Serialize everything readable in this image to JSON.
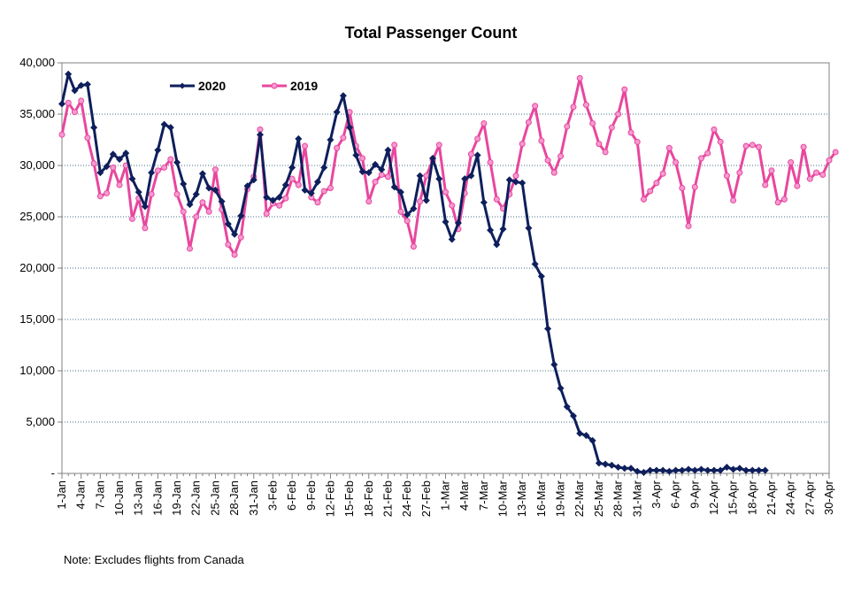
{
  "chart_data": {
    "type": "line",
    "title": "Total Passenger Count",
    "xlabel": "",
    "ylabel": "",
    "ylim": [
      0,
      40000
    ],
    "ytick_labels": [
      "-",
      "5,000",
      "10,000",
      "15,000",
      "20,000",
      "25,000",
      "30,000",
      "35,000",
      "40,000"
    ],
    "ytick_values": [
      0,
      5000,
      10000,
      15000,
      20000,
      25000,
      30000,
      35000,
      40000
    ],
    "grid": true,
    "legend_position": "top-left",
    "x_labels": [
      "1-Jan",
      "4-Jan",
      "7-Jan",
      "10-Jan",
      "13-Jan",
      "16-Jan",
      "19-Jan",
      "22-Jan",
      "25-Jan",
      "28-Jan",
      "31-Jan",
      "3-Feb",
      "6-Feb",
      "9-Feb",
      "12-Feb",
      "15-Feb",
      "18-Feb",
      "21-Feb",
      "24-Feb",
      "27-Feb",
      "1-Mar",
      "4-Mar",
      "7-Mar",
      "10-Mar",
      "13-Mar",
      "16-Mar",
      "19-Mar",
      "22-Mar",
      "25-Mar",
      "28-Mar",
      "31-Mar",
      "3-Apr",
      "6-Apr",
      "9-Apr",
      "12-Apr",
      "15-Apr",
      "18-Apr",
      "21-Apr",
      "24-Apr",
      "27-Apr",
      "30-Apr"
    ],
    "series": [
      {
        "name": "2020",
        "color": "#0f1f5c",
        "marker": "diamond",
        "values": [
          36000,
          38900,
          37300,
          37800,
          37900,
          33700,
          29300,
          29900,
          31100,
          30600,
          31200,
          28700,
          27400,
          26000,
          29300,
          31500,
          34000,
          33700,
          30300,
          28200,
          26200,
          27200,
          29200,
          27800,
          27600,
          26500,
          24300,
          23300,
          25100,
          28000,
          28600,
          33000,
          26900,
          26600,
          26900,
          28100,
          29800,
          32600,
          27600,
          27300,
          28400,
          29800,
          32500,
          35200,
          36800,
          33700,
          31000,
          29400,
          29300,
          30100,
          29600,
          31500,
          27900,
          27400,
          25200,
          25800,
          29000,
          26600,
          30700,
          28700,
          24500,
          22800,
          24400,
          28700,
          29000,
          31000,
          26400,
          23700,
          22300,
          23800,
          28600,
          28400,
          28300,
          23900,
          20400,
          19200,
          14100,
          10600,
          8300,
          6500,
          5600,
          3900,
          3700,
          3200,
          1000,
          900,
          800,
          600,
          500,
          500,
          200,
          100,
          300,
          300,
          300,
          200,
          300,
          300,
          400,
          300,
          400,
          300,
          300,
          300,
          600,
          400,
          500,
          300,
          300,
          300,
          300
        ]
      },
      {
        "name": "2019",
        "color": "#e8479e",
        "marker": "circle",
        "values": [
          33000,
          36100,
          35200,
          36300,
          32700,
          30200,
          27000,
          27300,
          29800,
          28100,
          30000,
          24800,
          26800,
          23900,
          27200,
          29500,
          29800,
          30600,
          27200,
          25500,
          21900,
          25000,
          26400,
          25500,
          29600,
          25700,
          22300,
          21300,
          23000,
          27700,
          28900,
          33500,
          25300,
          26300,
          26100,
          26800,
          28700,
          28100,
          31900,
          26900,
          26400,
          27500,
          27800,
          31700,
          32700,
          35200,
          31900,
          30700,
          26500,
          28400,
          29100,
          28900,
          32000,
          25500,
          24600,
          22100,
          26500,
          29000,
          30500,
          32000,
          27400,
          26100,
          23800,
          27300,
          31100,
          32600,
          34100,
          30300,
          26700,
          25800,
          27200,
          29000,
          32100,
          34200,
          35800,
          32400,
          30500,
          29300,
          30900,
          33800,
          35700,
          38500,
          35900,
          34100,
          32100,
          31300,
          33700,
          35000,
          37400,
          33200,
          32300,
          26700,
          27500,
          28300,
          29200,
          31700,
          30300,
          27800,
          24100,
          27900,
          30700,
          31200,
          33500,
          32300,
          29000,
          26600,
          29300,
          31900,
          32000,
          31800,
          28100,
          29500,
          26400,
          26700,
          30300,
          28000,
          31800,
          28700,
          29300,
          29100,
          30500,
          31300
        ]
      }
    ],
    "note": "Note: Excludes flights from Canada"
  }
}
